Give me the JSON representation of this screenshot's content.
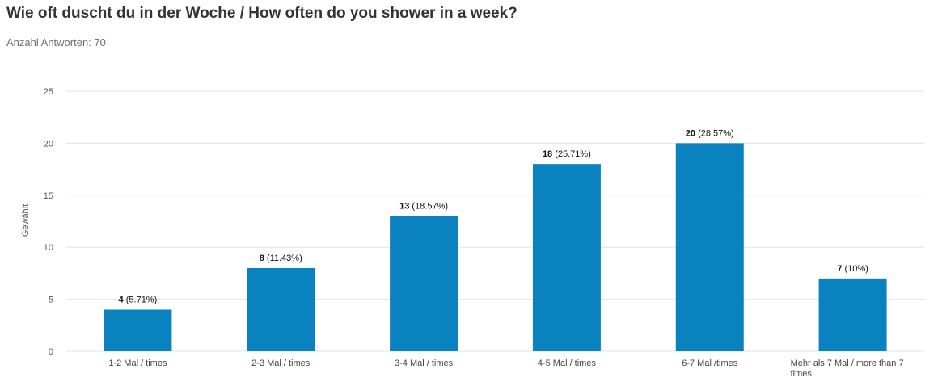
{
  "header": {
    "title": "Wie oft duscht du in der Woche / How often do you shower in a week?",
    "subtitle": "Anzahl Antworten: 70"
  },
  "chart_data": {
    "type": "bar",
    "categories": [
      "1-2 Mal / times",
      "2-3 Mal / times",
      "3-4 Mal / times",
      "4-5 Mal / times",
      "6-7 Mal /times",
      "Mehr als 7 Mal / more than 7 times"
    ],
    "values": [
      4,
      8,
      13,
      18,
      20,
      7
    ],
    "percent_labels": [
      "(5.71%)",
      "(11.43%)",
      "(18.57%)",
      "(25.71%)",
      "(28.57%)",
      "(10%)"
    ],
    "ylabel": "Gewählt",
    "xlabel": "",
    "ylim": [
      0,
      25
    ],
    "yticks": [
      0,
      5,
      10,
      15,
      20,
      25
    ],
    "grid": true,
    "bar_color": "#0a82c0",
    "grid_color": "#e3e3e3"
  }
}
